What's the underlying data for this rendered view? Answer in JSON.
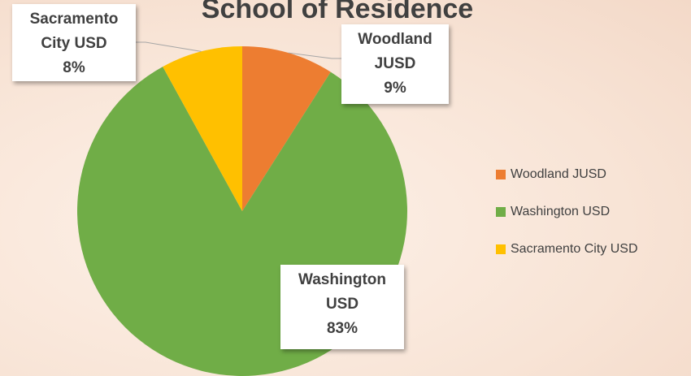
{
  "chart_data": {
    "type": "pie",
    "title": "School of Residence",
    "categories": [
      "Woodland JUSD",
      "Washington USD",
      "Sacramento City USD"
    ],
    "values": [
      9,
      83,
      8
    ],
    "value_labels": [
      "9%",
      "83%",
      "8%"
    ],
    "colors": [
      "#ED7D31",
      "#70AD47",
      "#FFC000"
    ],
    "legend": "right"
  }
}
